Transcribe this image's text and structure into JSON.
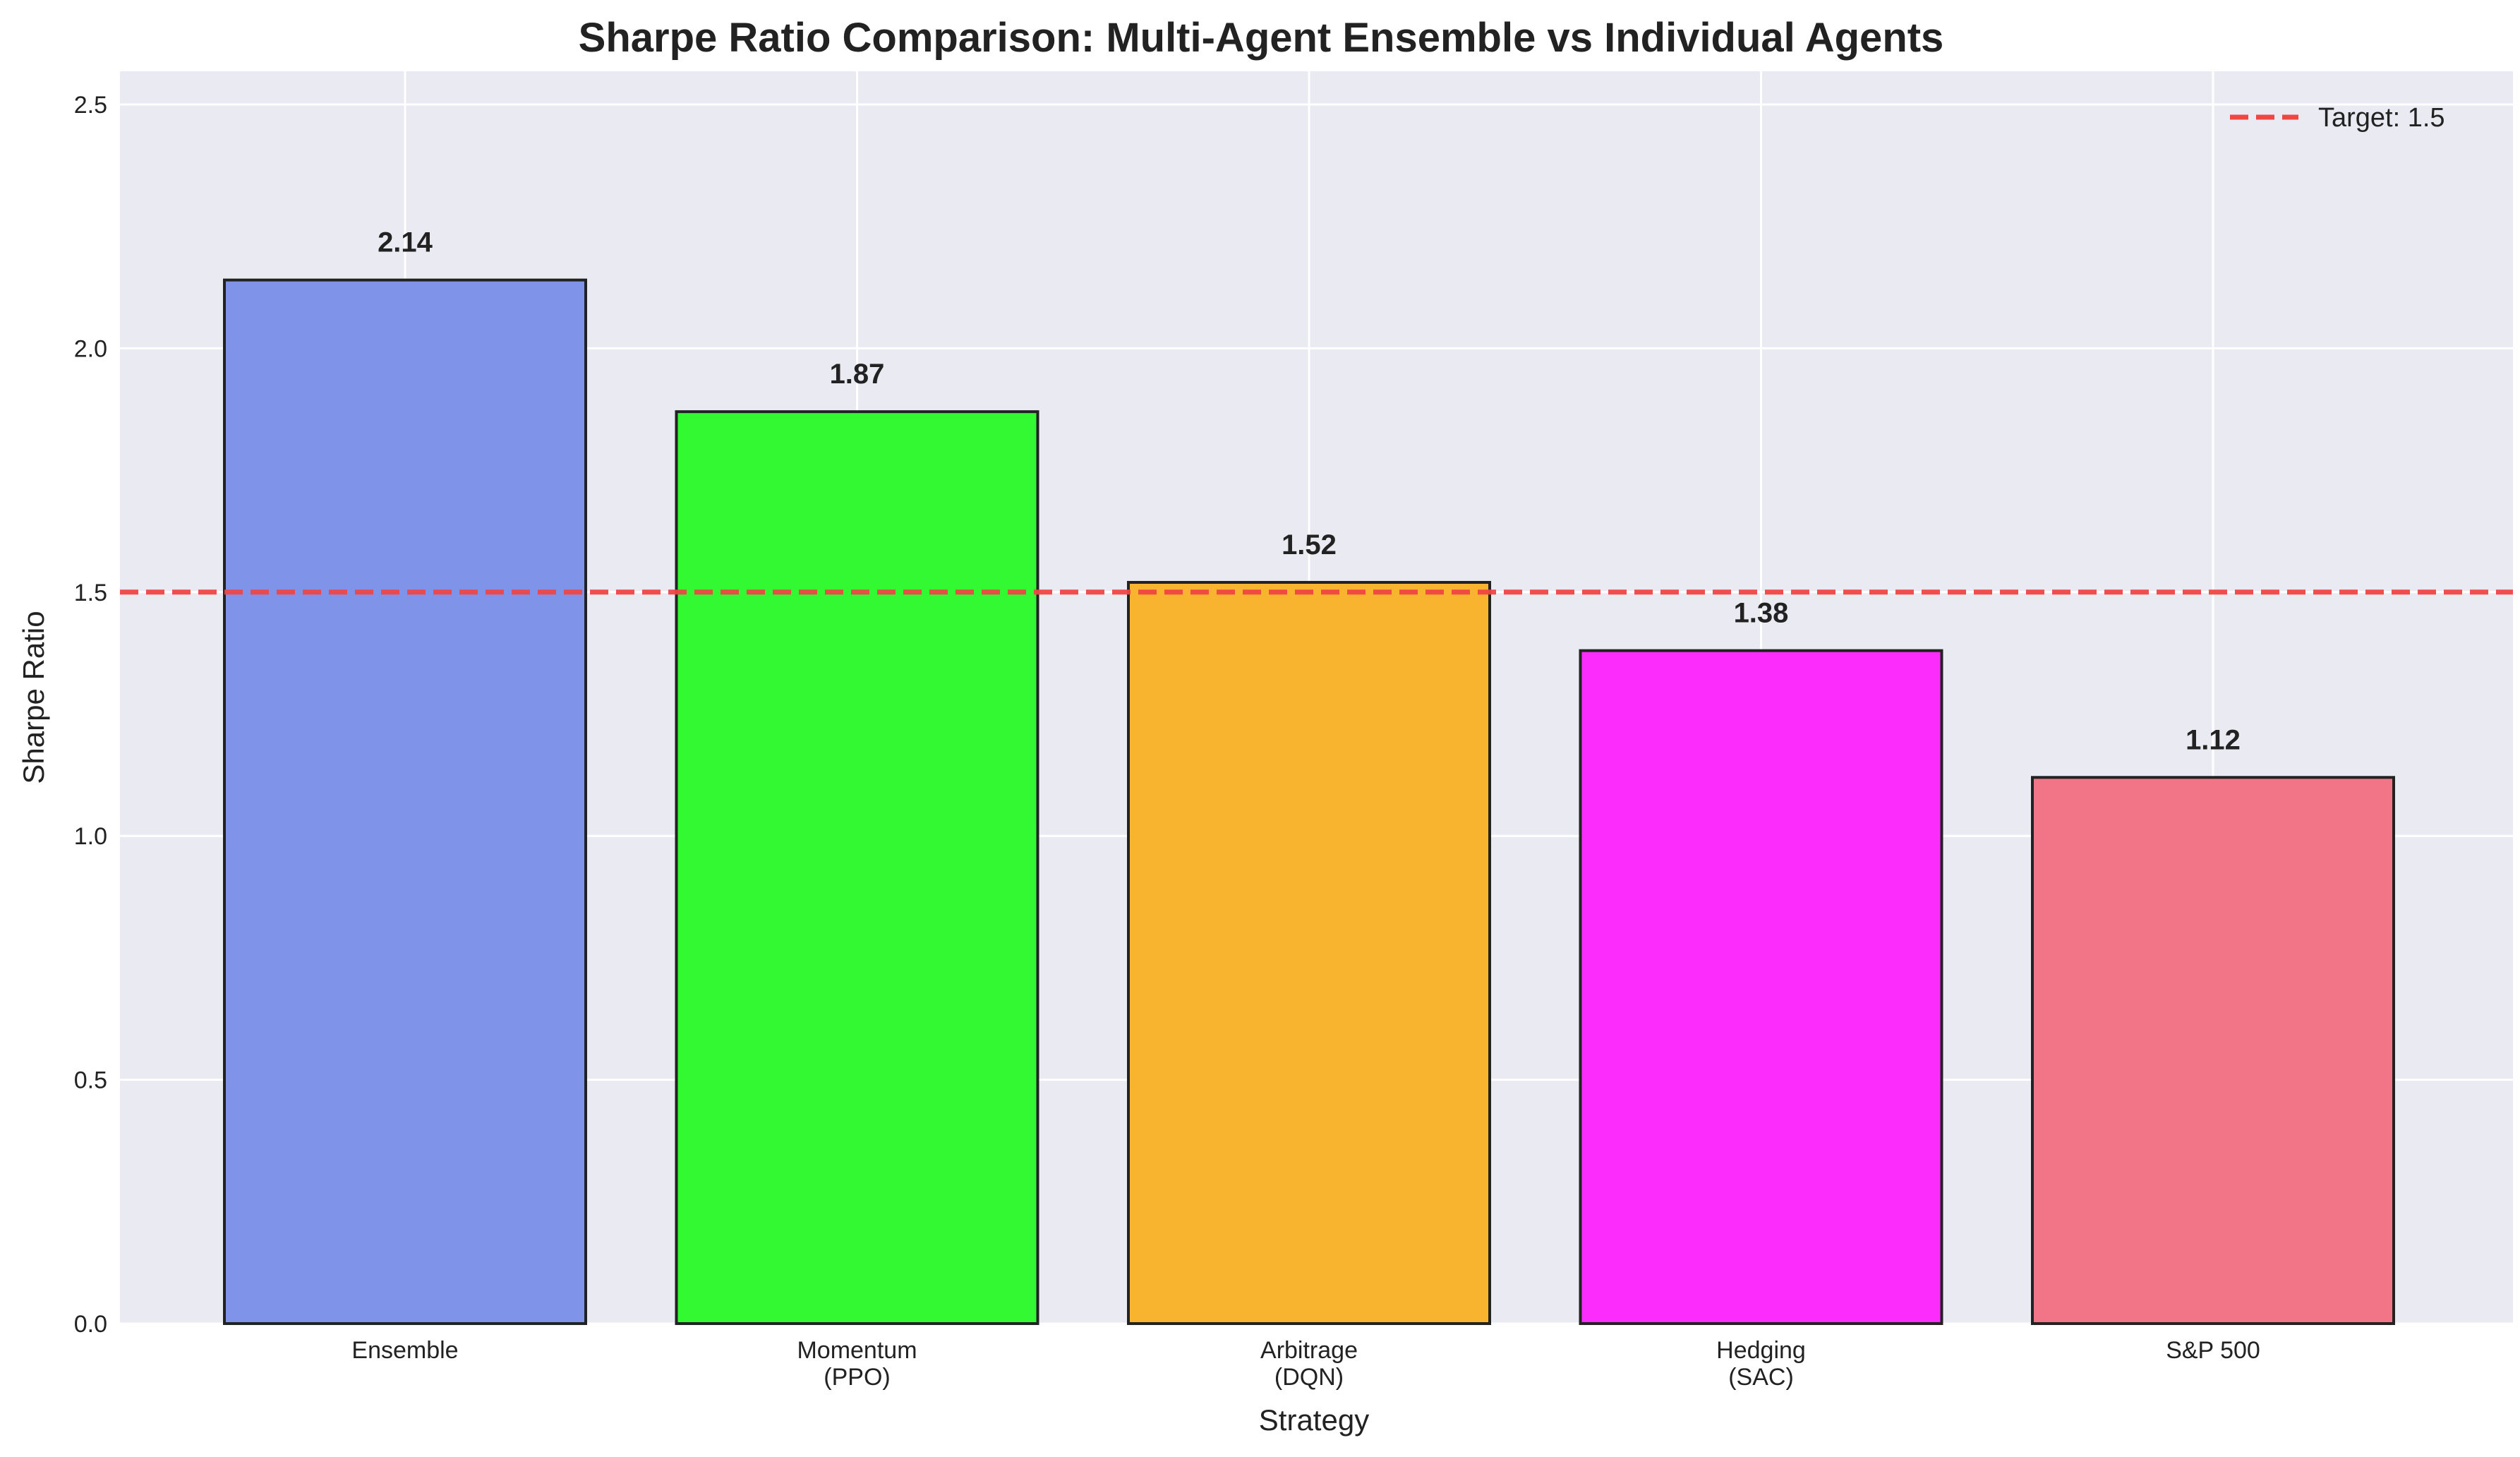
{
  "chart_data": {
    "type": "bar",
    "title": "Sharpe Ratio Comparison: Multi-Agent Ensemble vs Individual Agents",
    "xlabel": "Strategy",
    "ylabel": "Sharpe Ratio",
    "categories": [
      [
        "Ensemble"
      ],
      [
        "Momentum",
        "(PPO)"
      ],
      [
        "Arbitrage",
        "(DQN)"
      ],
      [
        "Hedging",
        "(SAC)"
      ],
      [
        "S&P 500"
      ]
    ],
    "values": [
      2.14,
      1.87,
      1.52,
      1.38,
      1.12
    ],
    "value_labels": [
      "2.14",
      "1.87",
      "1.52",
      "1.38",
      "1.12"
    ],
    "bar_colors": [
      "#7f93e8",
      "#33f933",
      "#f8b42f",
      "#fc2cfc",
      "#f17586"
    ],
    "ylim": [
      0,
      2.568
    ],
    "yticks": [
      0.0,
      0.5,
      1.0,
      1.5,
      2.0,
      2.5
    ],
    "ytick_labels": [
      "0.0",
      "0.5",
      "1.0",
      "1.5",
      "2.0",
      "2.5"
    ],
    "grid": true,
    "reference_line": {
      "value": 1.5,
      "label": "Target: 1.5",
      "color": "#f04545",
      "style": "dashed"
    },
    "legend": {
      "position": "top-right",
      "entries": [
        "Target: 1.5"
      ]
    }
  },
  "colors": {
    "plot_background": "#eaeaf2",
    "grid": "#ffffff",
    "bar_edge": "#222222"
  }
}
